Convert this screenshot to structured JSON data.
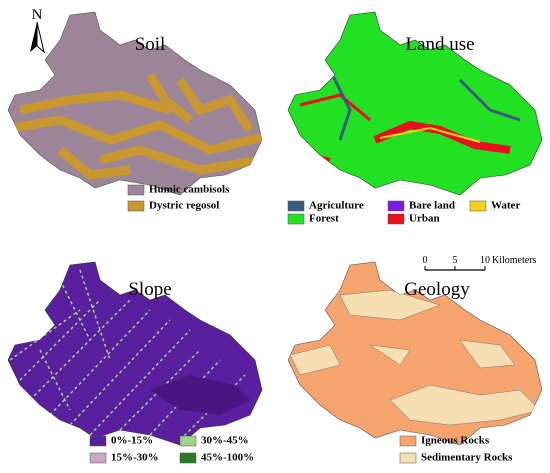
{
  "north_label": "N",
  "scale_bar": {
    "labels": [
      "0",
      "5",
      "10"
    ],
    "unit": "Kilometers"
  },
  "panels": [
    {
      "title": "Soil",
      "legend": [
        {
          "label": "Humic cambisols",
          "color": "#9c8598"
        },
        {
          "label": "Dystric regosol",
          "color": "#c9972f"
        }
      ]
    },
    {
      "title": "Land use",
      "legend": [
        {
          "label": "Agriculture",
          "color": "#3b5a82"
        },
        {
          "label": "Bare land",
          "color": "#7a1fe0"
        },
        {
          "label": "Water",
          "color": "#f2d21a"
        },
        {
          "label": "Forest",
          "color": "#22e022"
        },
        {
          "label": "Urban",
          "color": "#e8101e"
        }
      ]
    },
    {
      "title": "Slope",
      "legend": [
        {
          "label": "0%-15%",
          "color": "#5a1f9e"
        },
        {
          "label": "30%-45%",
          "color": "#9fd38a"
        },
        {
          "label": "15%-30%",
          "color": "#c7a8c9"
        },
        {
          "label": "45%-100%",
          "color": "#2a7a2a"
        }
      ]
    },
    {
      "title": "Geology",
      "legend": [
        {
          "label": "Igneous Rocks",
          "color": "#f4a46c"
        },
        {
          "label": "Sedimentary Rocks",
          "color": "#f6ddb2"
        }
      ]
    }
  ]
}
